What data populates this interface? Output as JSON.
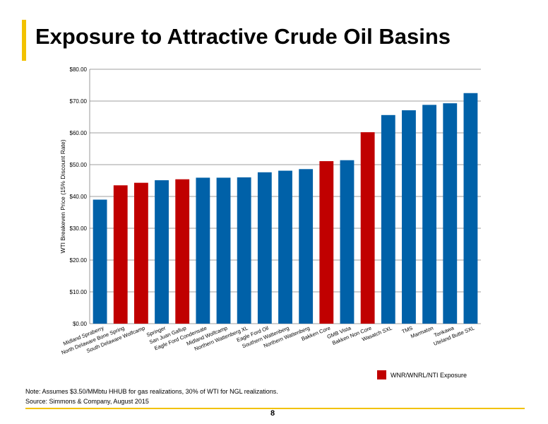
{
  "slide": {
    "title": "Exposure to Attractive Crude Oil Basins",
    "note": "Note: Assumes $3.50/MMbtu HHUB for gas realizations, 30% of WTI for NGL realizations.",
    "source": "Source: Simmons & Company, August 2015",
    "page_number": "8"
  },
  "colors": {
    "accent": "#F2C200",
    "blue": "#0061A8",
    "red": "#C00000",
    "grid": "#7F7F7F"
  },
  "chart_data": {
    "type": "bar",
    "ylabel": "WTI Breakeven Price (15% Discount Rate)",
    "ylim": [
      0,
      80
    ],
    "yticks": [
      0,
      10,
      20,
      30,
      40,
      50,
      60,
      70,
      80
    ],
    "ytick_labels": [
      "$0.00",
      "$10.00",
      "$20.00",
      "$30.00",
      "$40.00",
      "$50.00",
      "$60.00",
      "$70.00",
      "$80.00"
    ],
    "grid": true,
    "categories": [
      "Midland Spraberry",
      "North Delaware Bone Spring",
      "South Delaware Wolfcamp",
      "Springer",
      "San Juan Gallup",
      "Eagle Ford Condensate",
      "Midland Wolfcamp",
      "Northern Wattenberg XL",
      "Eagle Ford Oil",
      "Southern Wattenberg",
      "Northern Wattenberg",
      "Bakken Core",
      "GMB Vista",
      "Bakken Non Core",
      "Wasatch SXL",
      "TMS",
      "Marmaton",
      "Tonkawa",
      "Uteland Butte SXL"
    ],
    "values": [
      39.0,
      43.5,
      44.3,
      45.1,
      45.4,
      45.9,
      45.9,
      46.0,
      47.6,
      48.1,
      48.6,
      51.1,
      51.4,
      60.2,
      65.6,
      67.1,
      68.8,
      69.3,
      72.5
    ],
    "wnr_exposure": [
      false,
      true,
      true,
      false,
      true,
      false,
      false,
      false,
      false,
      false,
      false,
      true,
      false,
      true,
      false,
      false,
      false,
      false,
      false
    ],
    "legend": {
      "label": "WNR/WNRL/NTI Exposure",
      "position": "bottom-right"
    }
  }
}
